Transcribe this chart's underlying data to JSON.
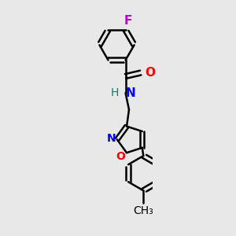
{
  "background_color": "#e8e8e8",
  "bond_color": "#000000",
  "F_color": "#c000c0",
  "O_color": "#ff0000",
  "N_color": "#0000ff",
  "NH_color": "#008080",
  "bond_width": 1.8,
  "dbo": 0.018,
  "font_size": 11,
  "figsize": [
    3.0,
    3.0
  ],
  "dpi": 100,
  "xlim": [
    0.0,
    3.0
  ],
  "ylim": [
    -0.5,
    9.5
  ]
}
